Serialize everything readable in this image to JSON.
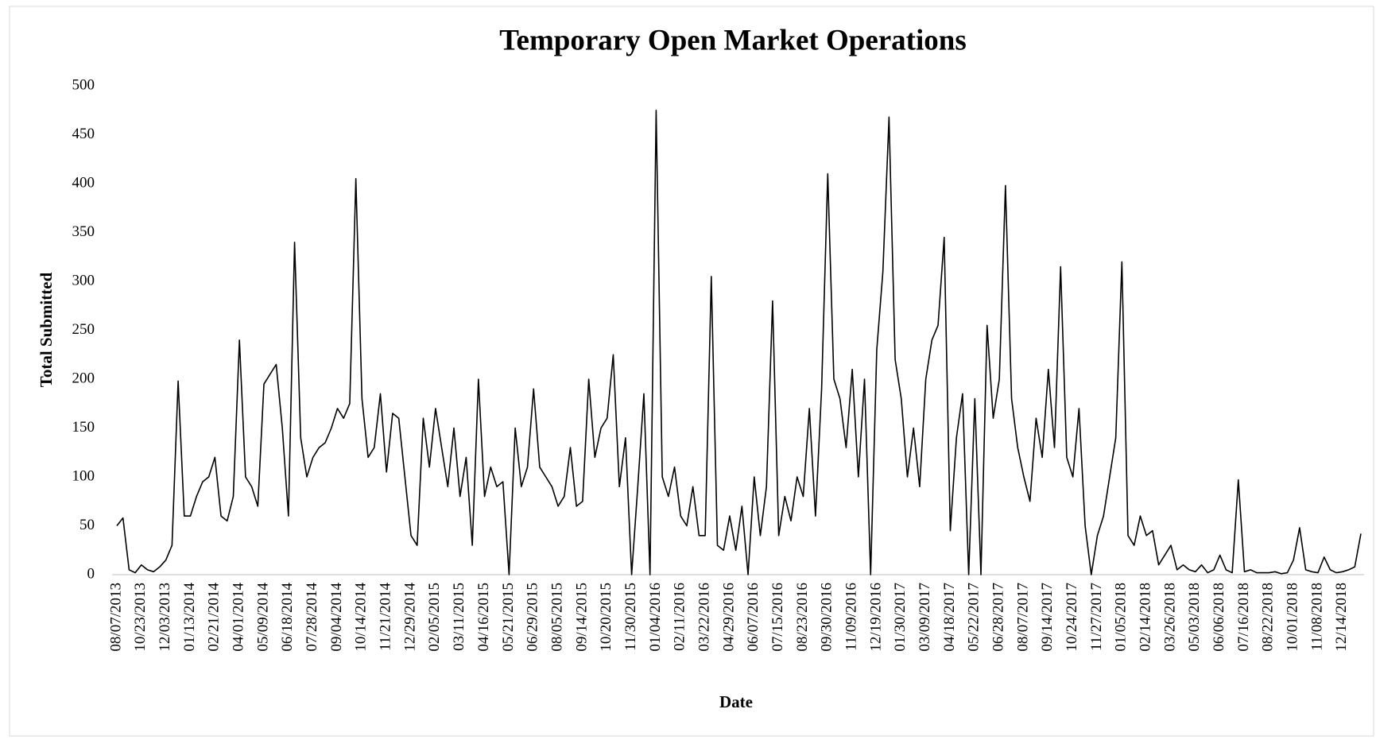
{
  "chart_data": {
    "type": "line",
    "title": "Temporary Open Market Operations",
    "x_label": "Date",
    "y_label": "Total Submitted",
    "color": "#000000",
    "grid": false,
    "ylim": [
      0,
      500
    ],
    "yticks": [
      0,
      50,
      100,
      150,
      200,
      250,
      300,
      350,
      400,
      450,
      500
    ],
    "categories": [
      "08/07/2013",
      null,
      null,
      null,
      "10/23/2013",
      null,
      null,
      null,
      "12/03/2013",
      null,
      null,
      null,
      "01/13/2014",
      null,
      null,
      null,
      "02/21/2014",
      null,
      null,
      null,
      "04/01/2014",
      null,
      null,
      null,
      "05/09/2014",
      null,
      null,
      null,
      "06/18/2014",
      null,
      null,
      null,
      "07/28/2014",
      null,
      null,
      null,
      "09/04/2014",
      null,
      null,
      null,
      "10/14/2014",
      null,
      null,
      null,
      "11/21/2014",
      null,
      null,
      null,
      "12/29/2014",
      null,
      null,
      null,
      "02/05/2015",
      null,
      null,
      null,
      "03/11/2015",
      null,
      null,
      null,
      "04/16/2015",
      null,
      null,
      null,
      "05/21/2015",
      null,
      null,
      null,
      "06/29/2015",
      null,
      null,
      null,
      "08/05/2015",
      null,
      null,
      null,
      "09/14/2015",
      null,
      null,
      null,
      "10/20/2015",
      null,
      null,
      null,
      "11/30/2015",
      null,
      null,
      null,
      "01/04/2016",
      null,
      null,
      null,
      "02/11/2016",
      null,
      null,
      null,
      "03/22/2016",
      null,
      null,
      null,
      "04/29/2016",
      null,
      null,
      null,
      "06/07/2016",
      null,
      null,
      null,
      "07/15/2016",
      null,
      null,
      null,
      "08/23/2016",
      null,
      null,
      null,
      "09/30/2016",
      null,
      null,
      null,
      "11/09/2016",
      null,
      null,
      null,
      "12/19/2016",
      null,
      null,
      null,
      "01/30/2017",
      null,
      null,
      null,
      "03/09/2017",
      null,
      null,
      null,
      "04/18/2017",
      null,
      null,
      null,
      "05/22/2017",
      null,
      null,
      null,
      "06/28/2017",
      null,
      null,
      null,
      "08/07/2017",
      null,
      null,
      null,
      "09/14/2017",
      null,
      null,
      null,
      "10/24/2017",
      null,
      null,
      null,
      "11/27/2017",
      null,
      null,
      null,
      "01/05/2018",
      null,
      null,
      null,
      "02/14/2018",
      null,
      null,
      null,
      "03/26/2018",
      null,
      null,
      null,
      "05/03/2018",
      null,
      null,
      null,
      "06/06/2018",
      null,
      null,
      null,
      "07/16/2018",
      null,
      null,
      null,
      "08/22/2018",
      null,
      null,
      null,
      "10/01/2018",
      null,
      null,
      null,
      "11/08/2018",
      null,
      null,
      null,
      "12/14/2018",
      null,
      null,
      null
    ],
    "values": [
      50,
      58,
      5,
      2,
      10,
      5,
      3,
      8,
      15,
      30,
      198,
      60,
      60,
      80,
      95,
      100,
      120,
      60,
      55,
      80,
      240,
      100,
      90,
      70,
      195,
      205,
      215,
      150,
      60,
      340,
      140,
      100,
      120,
      130,
      135,
      150,
      170,
      160,
      175,
      405,
      180,
      120,
      130,
      185,
      105,
      165,
      160,
      100,
      40,
      30,
      160,
      110,
      170,
      130,
      90,
      150,
      80,
      120,
      30,
      200,
      80,
      110,
      90,
      95,
      0,
      150,
      90,
      110,
      190,
      110,
      100,
      90,
      70,
      80,
      130,
      70,
      75,
      200,
      120,
      150,
      160,
      225,
      90,
      140,
      0,
      90,
      185,
      0,
      475,
      100,
      80,
      110,
      60,
      50,
      90,
      40,
      40,
      305,
      30,
      25,
      60,
      25,
      70,
      0,
      100,
      40,
      90,
      280,
      40,
      80,
      55,
      100,
      80,
      170,
      60,
      190,
      410,
      200,
      180,
      130,
      210,
      100,
      200,
      0,
      230,
      310,
      468,
      220,
      180,
      100,
      150,
      90,
      200,
      240,
      255,
      345,
      45,
      140,
      185,
      0,
      180,
      0,
      255,
      160,
      200,
      398,
      180,
      130,
      100,
      75,
      160,
      120,
      210,
      130,
      315,
      120,
      100,
      170,
      50,
      0,
      40,
      60,
      100,
      140,
      320,
      40,
      30,
      60,
      40,
      45,
      10,
      20,
      30,
      5,
      10,
      5,
      3,
      10,
      2,
      5,
      20,
      5,
      2,
      97,
      3,
      5,
      2,
      2,
      2,
      3,
      1,
      2,
      15,
      48,
      5,
      3,
      2,
      18,
      5,
      2,
      3,
      5,
      8,
      42
    ]
  }
}
